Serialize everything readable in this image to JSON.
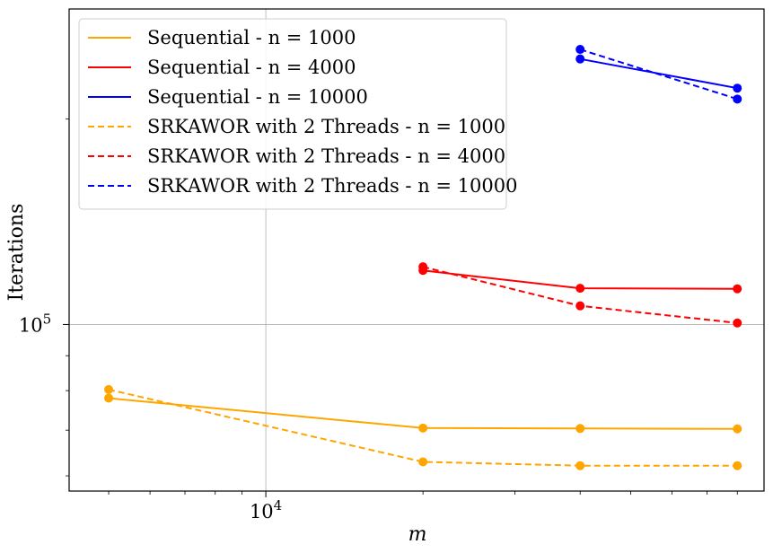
{
  "chart_data": {
    "type": "line",
    "xscale": "log",
    "yscale": "log",
    "xlabel": "m",
    "ylabel": "Iterations",
    "xlim": [
      4200,
      90000
    ],
    "ylim": [
      57000,
      290000
    ],
    "grid": true,
    "legend_position": "top-left",
    "x_ticks": [
      {
        "value": 10000,
        "base": "10",
        "exp": "4"
      }
    ],
    "y_ticks": [
      {
        "value": 100000,
        "base": "10",
        "exp": "5"
      }
    ],
    "series": [
      {
        "name": "Sequential - n = 1000",
        "color": "#FFA500",
        "dash": "solid",
        "x": [
          5000,
          20000,
          40000,
          80000
        ],
        "y": [
          78000,
          70500,
          70400,
          70300
        ]
      },
      {
        "name": "Sequential - n = 4000",
        "color": "#FF0000",
        "dash": "solid",
        "x": [
          20000,
          40000,
          80000
        ],
        "y": [
          120000,
          113000,
          112800
        ]
      },
      {
        "name": "Sequential - n = 10000",
        "color": "#0000FF",
        "dash": "solid",
        "x": [
          40000,
          80000
        ],
        "y": [
          245000,
          222000
        ]
      },
      {
        "name": "SRKAWOR with 2 Threads - n = 1000",
        "color": "#FFA500",
        "dash": "dashed",
        "x": [
          5000,
          20000,
          40000,
          80000
        ],
        "y": [
          80300,
          62900,
          62100,
          62100
        ]
      },
      {
        "name": "SRKAWOR with 2 Threads - n = 4000",
        "color": "#FF0000",
        "dash": "dashed",
        "x": [
          20000,
          40000,
          80000
        ],
        "y": [
          121500,
          106500,
          100500
        ]
      },
      {
        "name": "SRKAWOR with 2 Threads - n = 10000",
        "color": "#0000FF",
        "dash": "dashed",
        "x": [
          40000,
          80000
        ],
        "y": [
          253000,
          214000
        ]
      }
    ]
  }
}
